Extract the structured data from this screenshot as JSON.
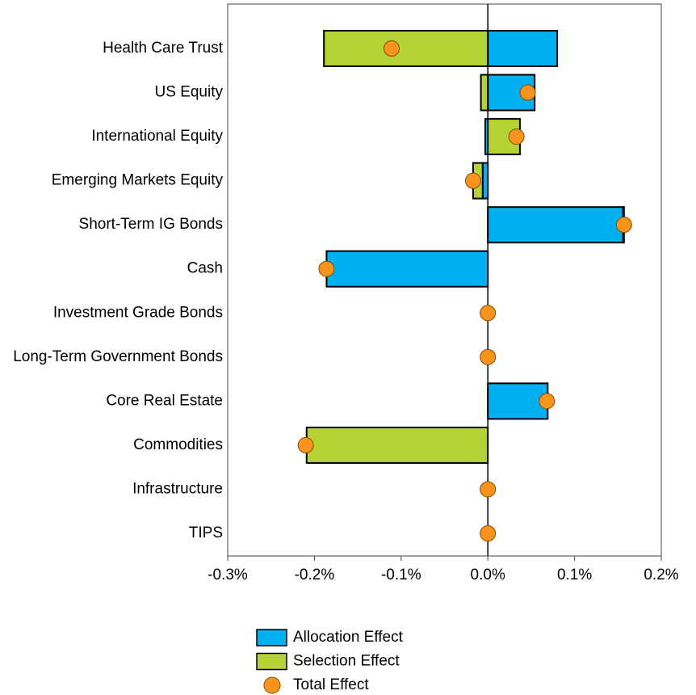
{
  "chart_data": {
    "type": "bar",
    "orientation": "horizontal",
    "stacked": true,
    "categories": [
      "Health Care Trust",
      "US Equity",
      "International Equity",
      "Emerging Markets Equity",
      "Short-Term IG Bonds",
      "Cash",
      "Investment Grade Bonds",
      "Long-Term Government Bonds",
      "Core Real Estate",
      "Commodities",
      "Infrastructure",
      "TIPS"
    ],
    "series": [
      {
        "name": "Allocation Effect",
        "color": "#00b0f0",
        "values": [
          0.08,
          0.054,
          -0.003,
          -0.006,
          0.156,
          -0.186,
          0,
          0,
          0.069,
          0,
          0,
          0
        ]
      },
      {
        "name": "Selection Effect",
        "color": "#b5d334",
        "values": [
          -0.189,
          -0.008,
          0.037,
          -0.011,
          0.001,
          0,
          0,
          0,
          0,
          -0.209,
          0,
          0
        ]
      },
      {
        "name": "Total Effect",
        "type": "scatter",
        "color": "#f7941d",
        "values": [
          -0.111,
          0.046,
          0.033,
          -0.017,
          0.157,
          -0.186,
          0,
          0,
          0.068,
          -0.21,
          0,
          0
        ]
      }
    ],
    "xlim": [
      -0.3,
      0.2
    ],
    "xticks": [
      {
        "value": -0.3,
        "label": "-0.3%"
      },
      {
        "value": -0.2,
        "label": "-0.2%"
      },
      {
        "value": -0.1,
        "label": "-0.1%"
      },
      {
        "value": 0,
        "label": "0.0%"
      },
      {
        "value": 0.1,
        "label": "0.1%"
      },
      {
        "value": 0.2,
        "label": "0.2%"
      }
    ],
    "legend": "bottom"
  }
}
